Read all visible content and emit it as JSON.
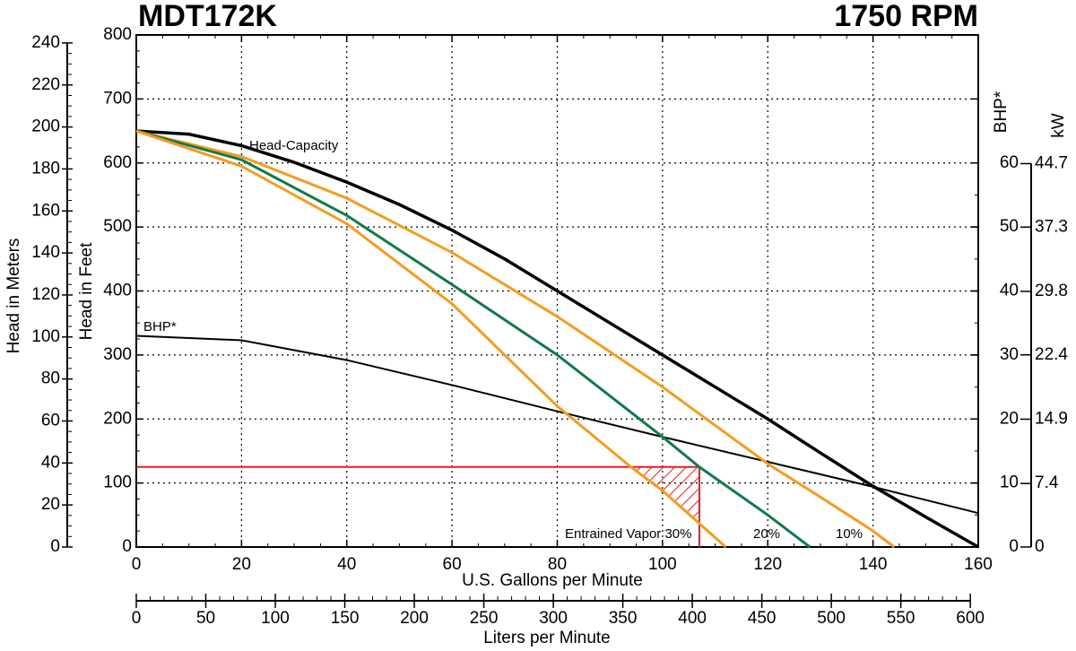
{
  "chart_data": {
    "type": "line",
    "title": "MDT172K",
    "subtitle": "1750 RPM",
    "x_label": "U.S. Gallons per Minute",
    "x2_label": "Liters per Minute",
    "y_label": "Head in Feet",
    "y3_label": "Head in Meters",
    "y2_label": "BHP*",
    "y4_label": "kW",
    "xlim": [
      0,
      160
    ],
    "xticks": [
      0,
      20,
      40,
      60,
      80,
      100,
      120,
      140,
      160
    ],
    "x2lim": [
      0,
      605.7
    ],
    "x2ticks": [
      0,
      50,
      100,
      150,
      200,
      250,
      300,
      350,
      400,
      450,
      500,
      550,
      600
    ],
    "ylim": [
      0,
      800
    ],
    "yticks": [
      0,
      100,
      200,
      300,
      400,
      500,
      600,
      700,
      800
    ],
    "y3lim": [
      0,
      243.8
    ],
    "y3ticks": [
      0,
      20,
      40,
      60,
      80,
      100,
      120,
      140,
      160,
      180,
      200,
      220,
      240
    ],
    "y2lim": [
      0,
      80
    ],
    "y2ticks": [
      0,
      10,
      20,
      30,
      40,
      50,
      60
    ],
    "y4lim": [
      0,
      59.7
    ],
    "y4ticks": [
      0,
      7.4,
      14.9,
      22.4,
      29.8,
      37.3,
      44.7
    ],
    "grid": true,
    "series": [
      {
        "name": "Head-Capacity",
        "color": "#000000",
        "x": [
          0,
          10,
          20,
          30,
          40,
          50,
          60,
          70,
          80,
          90,
          100,
          110,
          120,
          130,
          140,
          150,
          160
        ],
        "values": [
          650,
          645,
          627,
          601,
          570,
          535,
          495,
          450,
          400,
          350,
          300,
          250,
          200,
          147,
          95,
          47,
          0
        ]
      },
      {
        "name": "BHP*",
        "color": "#000000",
        "axis": "y2",
        "x": [
          0,
          20,
          40,
          60,
          80,
          100,
          120,
          140,
          160
        ],
        "values": [
          33,
          32.3,
          29.2,
          25.3,
          21.2,
          17.2,
          13.3,
          9.4,
          5.3
        ]
      },
      {
        "name": "10%",
        "color": "#f39c1f",
        "x": [
          0,
          20,
          40,
          60,
          80,
          100,
          120,
          130,
          140,
          144
        ],
        "values": [
          650,
          610,
          545,
          460,
          360,
          250,
          130,
          78,
          25,
          0
        ]
      },
      {
        "name": "20%",
        "color": "#0f7a4a",
        "x": [
          0,
          20,
          40,
          60,
          80,
          100,
          107,
          120,
          128
        ],
        "values": [
          650,
          605,
          518,
          410,
          300,
          172,
          125,
          50,
          0
        ]
      },
      {
        "name": "Entrained Vapor 30%",
        "color": "#f39c1f",
        "x": [
          0,
          20,
          40,
          60,
          80,
          94,
          100,
          112
        ],
        "values": [
          650,
          595,
          505,
          380,
          220,
          125,
          88,
          0
        ]
      }
    ],
    "operating_point": {
      "x": 107,
      "y": 125,
      "color": "#e31e24"
    }
  }
}
